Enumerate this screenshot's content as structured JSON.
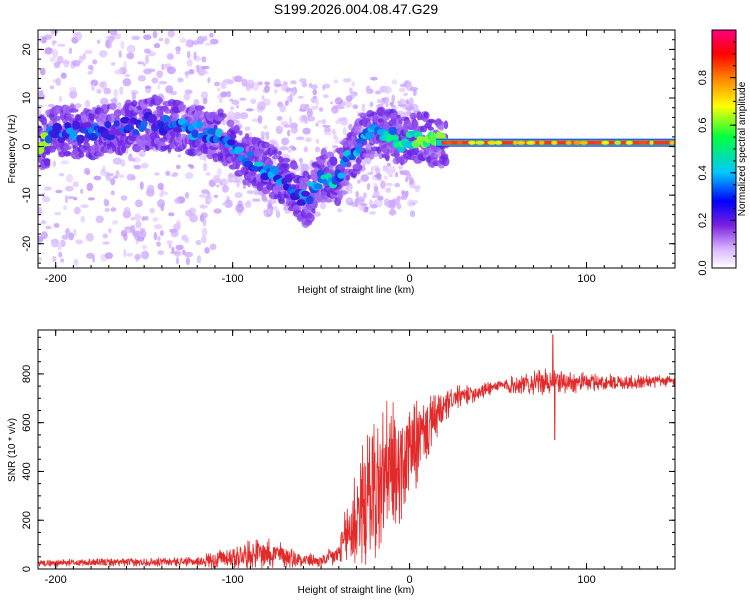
{
  "figure": {
    "title": "S199.2026.004.08.47.G29"
  },
  "chart_data": [
    {
      "type": "heatmap",
      "title": "S199.2026.004.08.47.G29",
      "xlabel": "Height of straight line (km)",
      "ylabel": "Frequency (Hz)",
      "xlim": [
        -210,
        150
      ],
      "ylim": [
        -25,
        24
      ],
      "xticks": [
        "-200",
        "-100",
        "0",
        "100"
      ],
      "yticks": [
        "20",
        "10",
        "0",
        "-10",
        "-20"
      ],
      "colorbar": {
        "label": "Normalized spectral amplitude",
        "range": [
          0,
          1
        ],
        "ticks": [
          "0.0",
          "0.2",
          "0.4",
          "0.6",
          "0.8"
        ],
        "colors": [
          "#f2e4ff",
          "#7a20e0",
          "#0000ff",
          "#00c8ff",
          "#00ff60",
          "#ffff00",
          "#ff8000",
          "#ff0000",
          "#ff0080"
        ]
      },
      "ridge": [
        {
          "x": -205,
          "y": 3,
          "a": 0.35
        },
        {
          "x": -190,
          "y": 3,
          "a": 0.35
        },
        {
          "x": -175,
          "y": 3,
          "a": 0.3
        },
        {
          "x": -160,
          "y": 4,
          "a": 0.3
        },
        {
          "x": -145,
          "y": 5,
          "a": 0.3
        },
        {
          "x": -130,
          "y": 4,
          "a": 0.35
        },
        {
          "x": -115,
          "y": 3,
          "a": 0.4
        },
        {
          "x": -105,
          "y": 2,
          "a": 0.4
        },
        {
          "x": -95,
          "y": -2,
          "a": 0.4
        },
        {
          "x": -85,
          "y": -4,
          "a": 0.4
        },
        {
          "x": -75,
          "y": -6,
          "a": 0.35
        },
        {
          "x": -65,
          "y": -9,
          "a": 0.35
        },
        {
          "x": -58,
          "y": -11,
          "a": 0.35
        },
        {
          "x": -50,
          "y": -6,
          "a": 0.45
        },
        {
          "x": -42,
          "y": -7,
          "a": 0.45
        },
        {
          "x": -35,
          "y": -3,
          "a": 0.4
        },
        {
          "x": -25,
          "y": 3,
          "a": 0.4
        },
        {
          "x": -15,
          "y": 3,
          "a": 0.45
        },
        {
          "x": -5,
          "y": 1,
          "a": 0.5
        },
        {
          "x": 5,
          "y": 2,
          "a": 0.6
        },
        {
          "x": 15,
          "y": 1,
          "a": 0.7
        },
        {
          "x": 20,
          "y": 0.8,
          "a": 0.95
        },
        {
          "x": 80,
          "y": 0.8,
          "a": 0.95
        },
        {
          "x": 150,
          "y": 0.8,
          "a": 0.95
        }
      ]
    },
    {
      "type": "line",
      "xlabel": "Height of straight line (km)",
      "ylabel": "SNR (10 * v/v)",
      "xlim": [
        -210,
        150
      ],
      "ylim": [
        0,
        980
      ],
      "xticks": [
        "-200",
        "-100",
        "0",
        "100"
      ],
      "yticks": [
        "0",
        "200",
        "400",
        "600",
        "800"
      ],
      "series": [
        {
          "name": "SNR",
          "color": "#e32a2a",
          "envelope": [
            {
              "x": -210,
              "mean": 25,
              "amp": 15
            },
            {
              "x": -120,
              "mean": 30,
              "amp": 20
            },
            {
              "x": -110,
              "mean": 40,
              "amp": 40
            },
            {
              "x": -80,
              "mean": 70,
              "amp": 70
            },
            {
              "x": -65,
              "mean": 45,
              "amp": 40
            },
            {
              "x": -50,
              "mean": 30,
              "amp": 25
            },
            {
              "x": -40,
              "mean": 60,
              "amp": 60
            },
            {
              "x": -30,
              "mean": 220,
              "amp": 250
            },
            {
              "x": -20,
              "mean": 320,
              "amp": 330
            },
            {
              "x": -15,
              "mean": 360,
              "amp": 340
            },
            {
              "x": -5,
              "mean": 420,
              "amp": 260
            },
            {
              "x": 5,
              "mean": 520,
              "amp": 180
            },
            {
              "x": 15,
              "mean": 620,
              "amp": 100
            },
            {
              "x": 25,
              "mean": 700,
              "amp": 50
            },
            {
              "x": 50,
              "mean": 750,
              "amp": 30
            },
            {
              "x": 80,
              "mean": 770,
              "amp": 60
            },
            {
              "x": 100,
              "mean": 765,
              "amp": 40
            },
            {
              "x": 150,
              "mean": 770,
              "amp": 25
            }
          ],
          "features": [
            {
              "x": 81,
              "y": 960
            },
            {
              "x": 82,
              "y": 530
            }
          ]
        }
      ]
    }
  ]
}
